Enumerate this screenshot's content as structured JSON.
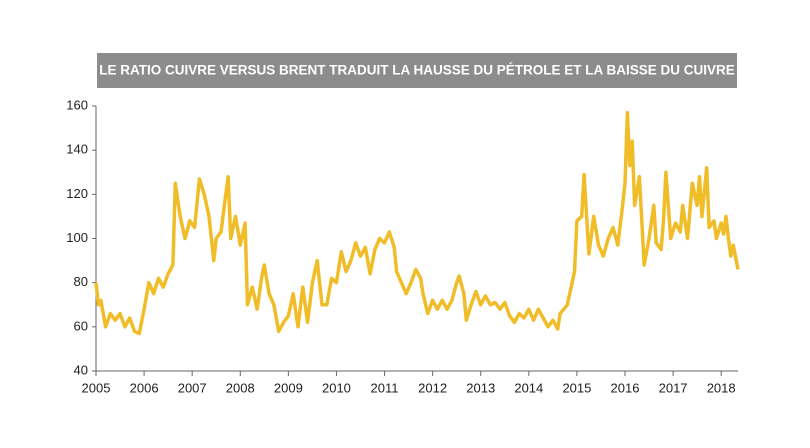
{
  "chart_data": {
    "type": "line",
    "title": "LE RATIO CUIVRE VERSUS BRENT TRADUIT LA HAUSSE DU PÉTROLE ET LA BAISSE DU CUIVRE",
    "x": [
      2005.0,
      2005.05,
      2005.1,
      2005.2,
      2005.3,
      2005.4,
      2005.5,
      2005.6,
      2005.7,
      2005.8,
      2005.9,
      2006.0,
      2006.1,
      2006.2,
      2006.3,
      2006.4,
      2006.5,
      2006.6,
      2006.65,
      2006.75,
      2006.85,
      2006.95,
      2007.05,
      2007.15,
      2007.25,
      2007.35,
      2007.45,
      2007.5,
      2007.6,
      2007.7,
      2007.75,
      2007.8,
      2007.9,
      2008.0,
      2008.1,
      2008.15,
      2008.25,
      2008.35,
      2008.45,
      2008.5,
      2008.6,
      2008.7,
      2008.8,
      2008.9,
      2009.0,
      2009.1,
      2009.2,
      2009.3,
      2009.4,
      2009.5,
      2009.6,
      2009.7,
      2009.8,
      2009.9,
      2010.0,
      2010.1,
      2010.2,
      2010.3,
      2010.4,
      2010.5,
      2010.6,
      2010.7,
      2010.8,
      2010.9,
      2011.0,
      2011.1,
      2011.2,
      2011.25,
      2011.35,
      2011.45,
      2011.55,
      2011.65,
      2011.75,
      2011.8,
      2011.9,
      2012.0,
      2012.1,
      2012.2,
      2012.3,
      2012.4,
      2012.5,
      2012.55,
      2012.65,
      2012.7,
      2012.8,
      2012.9,
      2013.0,
      2013.1,
      2013.2,
      2013.3,
      2013.4,
      2013.5,
      2013.6,
      2013.7,
      2013.8,
      2013.9,
      2014.0,
      2014.1,
      2014.2,
      2014.3,
      2014.4,
      2014.5,
      2014.6,
      2014.65,
      2014.8,
      2014.95,
      2015.0,
      2015.1,
      2015.15,
      2015.25,
      2015.35,
      2015.45,
      2015.55,
      2015.65,
      2015.75,
      2015.85,
      2015.95,
      2016.0,
      2016.05,
      2016.1,
      2016.15,
      2016.2,
      2016.3,
      2016.4,
      2016.5,
      2016.6,
      2016.65,
      2016.75,
      2016.8,
      2016.85,
      2016.95,
      2017.05,
      2017.15,
      2017.2,
      2017.3,
      2017.4,
      2017.5,
      2017.55,
      2017.6,
      2017.7,
      2017.75,
      2017.85,
      2017.9,
      2018.0,
      2018.05,
      2018.1,
      2018.15,
      2018.2,
      2018.25,
      2018.35
    ],
    "series": [
      {
        "color": "#f0bd29",
        "values": [
          80,
          70,
          72,
          60,
          66,
          63,
          66,
          60,
          64,
          58,
          57,
          68,
          80,
          75,
          82,
          78,
          84,
          88,
          125,
          110,
          100,
          108,
          105,
          127,
          120,
          110,
          90,
          100,
          103,
          120,
          128,
          100,
          110,
          97,
          107,
          70,
          78,
          68,
          83,
          88,
          75,
          70,
          58,
          62,
          65,
          75,
          60,
          78,
          62,
          80,
          90,
          70,
          70,
          82,
          80,
          94,
          85,
          90,
          98,
          92,
          96,
          84,
          95,
          100,
          98,
          103,
          96,
          85,
          80,
          75,
          80,
          86,
          82,
          75,
          66,
          72,
          68,
          72,
          68,
          72,
          80,
          83,
          75,
          63,
          70,
          76,
          70,
          74,
          70,
          71,
          68,
          71,
          65,
          62,
          66,
          64,
          68,
          63,
          68,
          64,
          60,
          63,
          59,
          66,
          70,
          85,
          108,
          110,
          129,
          93,
          110,
          97,
          92,
          100,
          105,
          97,
          115,
          125,
          157,
          133,
          144,
          115,
          128,
          88,
          100,
          115,
          98,
          95,
          108,
          130,
          100,
          107,
          103,
          115,
          100,
          125,
          115,
          128,
          110,
          132,
          105,
          108,
          100,
          107,
          102,
          110,
          100,
          92,
          97,
          86
        ]
      }
    ],
    "xlim": [
      2005,
      2018.35
    ],
    "xticks": [
      2005,
      2006,
      2007,
      2008,
      2009,
      2010,
      2011,
      2012,
      2013,
      2014,
      2015,
      2016,
      2017,
      2018
    ],
    "ylim": [
      40,
      160
    ],
    "yticks": [
      40,
      60,
      80,
      100,
      120,
      140,
      160
    ]
  }
}
